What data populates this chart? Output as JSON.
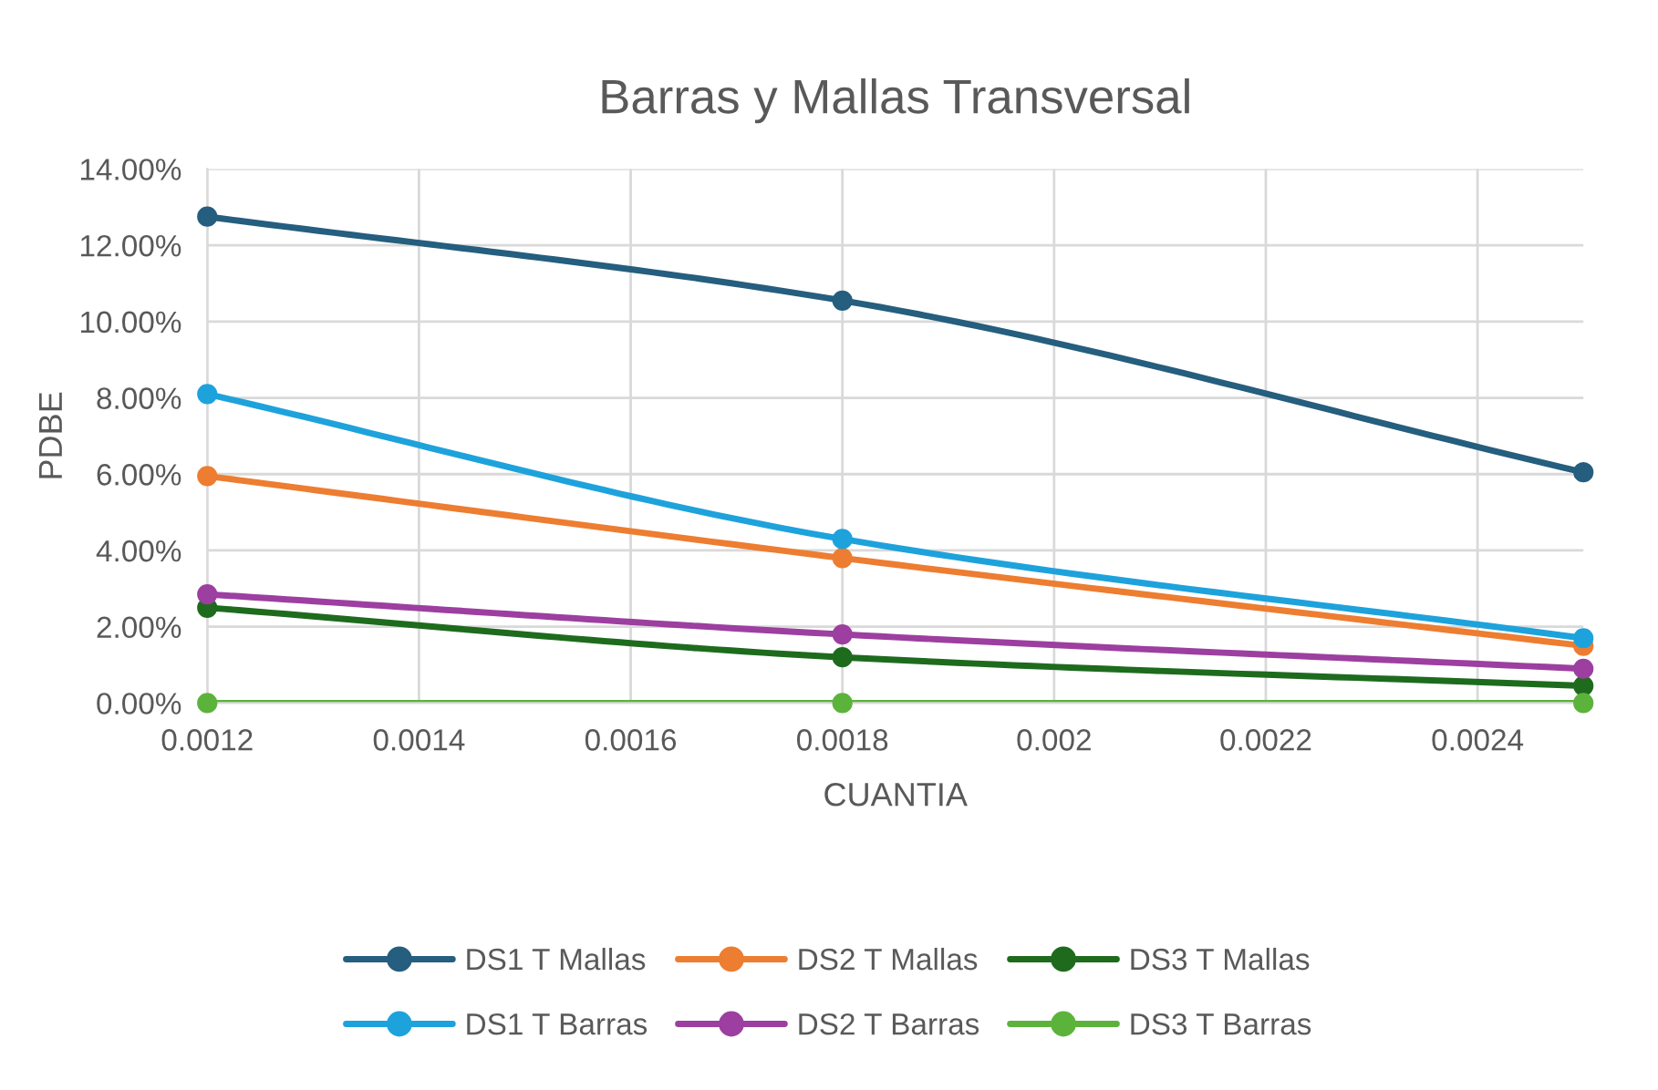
{
  "chart_data": {
    "type": "line",
    "title": "Barras y Mallas Transversal",
    "xlabel": "CUANTIA",
    "ylabel": "PDBE",
    "x": [
      0.0012,
      0.0018,
      0.0025
    ],
    "series": [
      {
        "name": "DS1 T Mallas",
        "color": "#255e7e",
        "values": [
          12.75,
          10.55,
          6.05
        ]
      },
      {
        "name": "DS2 T Mallas",
        "color": "#ed7d31",
        "values": [
          5.95,
          3.8,
          1.5
        ]
      },
      {
        "name": "DS3 T Mallas",
        "color": "#1e6b1e",
        "values": [
          2.5,
          1.2,
          0.45
        ]
      },
      {
        "name": "DS1 T Barras",
        "color": "#1ea2dc",
        "values": [
          8.1,
          4.3,
          1.7
        ]
      },
      {
        "name": "DS2 T Barras",
        "color": "#9c3fa0",
        "values": [
          2.85,
          1.8,
          0.9
        ]
      },
      {
        "name": "DS3 T Barras",
        "color": "#5cb33c",
        "values": [
          0,
          0,
          0
        ]
      }
    ],
    "xlim": [
      0.0012,
      0.0025
    ],
    "xticks": [
      0.0012,
      0.0014,
      0.0016,
      0.0018,
      0.002,
      0.0022,
      0.0024
    ],
    "ylim": [
      0,
      14
    ],
    "yticks": [
      {
        "value": 0,
        "label": "0.00%"
      },
      {
        "value": 2,
        "label": "2.00%"
      },
      {
        "value": 4,
        "label": "4.00%"
      },
      {
        "value": 6,
        "label": "6.00%"
      },
      {
        "value": 8,
        "label": "8.00%"
      },
      {
        "value": 10,
        "label": "10.00%"
      },
      {
        "value": 12,
        "label": "12.00%"
      },
      {
        "value": 14,
        "label": "14.00%"
      }
    ],
    "grid": true,
    "legend": "bottom",
    "marker": "circle",
    "line_style": "solid"
  }
}
